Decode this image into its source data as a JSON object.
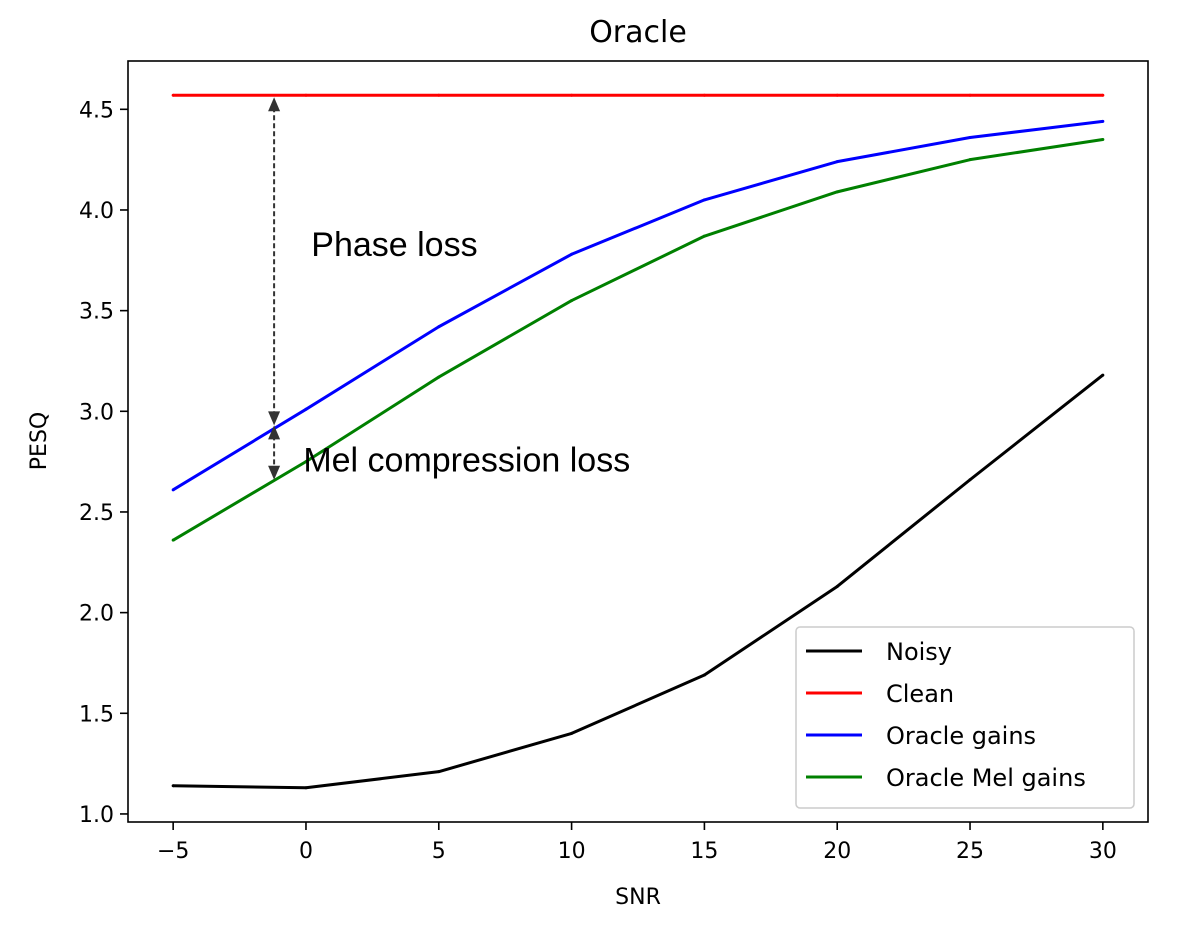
{
  "chart_data": {
    "type": "line",
    "title": "Oracle",
    "xlabel": "SNR",
    "ylabel": "PESQ",
    "xlim": [
      -6.7,
      31.7
    ],
    "ylim": [
      0.96,
      4.74
    ],
    "xticks": [
      -5,
      0,
      5,
      10,
      15,
      20,
      25,
      30
    ],
    "xtick_labels": [
      "−5",
      "0",
      "5",
      "10",
      "15",
      "20",
      "25",
      "30"
    ],
    "yticks": [
      1.0,
      1.5,
      2.0,
      2.5,
      3.0,
      3.5,
      4.0,
      4.5
    ],
    "ytick_labels": [
      "1.0",
      "1.5",
      "2.0",
      "2.5",
      "3.0",
      "3.5",
      "4.0",
      "4.5"
    ],
    "x": [
      -5,
      0,
      5,
      10,
      15,
      20,
      25,
      30
    ],
    "series": [
      {
        "name": "Noisy",
        "color": "#000000",
        "values": [
          1.14,
          1.13,
          1.21,
          1.4,
          1.69,
          2.13,
          2.66,
          3.18
        ]
      },
      {
        "name": "Clean",
        "color": "#ff0000",
        "values": [
          4.57,
          4.57,
          4.57,
          4.57,
          4.57,
          4.57,
          4.57,
          4.57
        ]
      },
      {
        "name": "Oracle gains",
        "color": "#0000ff",
        "values": [
          2.61,
          3.01,
          3.42,
          3.78,
          4.05,
          4.24,
          4.36,
          4.44
        ]
      },
      {
        "name": "Oracle Mel gains",
        "color": "#008000",
        "values": [
          2.36,
          2.75,
          3.17,
          3.55,
          3.87,
          4.09,
          4.25,
          4.35
        ]
      }
    ],
    "legend_position": "lower-right",
    "annotations": [
      {
        "text": "Phase loss",
        "x": 0.2,
        "y": 3.83,
        "arrow": {
          "x": -1.2,
          "y_from": 2.93,
          "y_to": 4.56
        }
      },
      {
        "text": "Mel compression loss",
        "x": -0.1,
        "y": 2.76,
        "arrow": {
          "x": -1.2,
          "y_from": 2.66,
          "y_to": 2.93
        }
      }
    ],
    "grid": false
  }
}
